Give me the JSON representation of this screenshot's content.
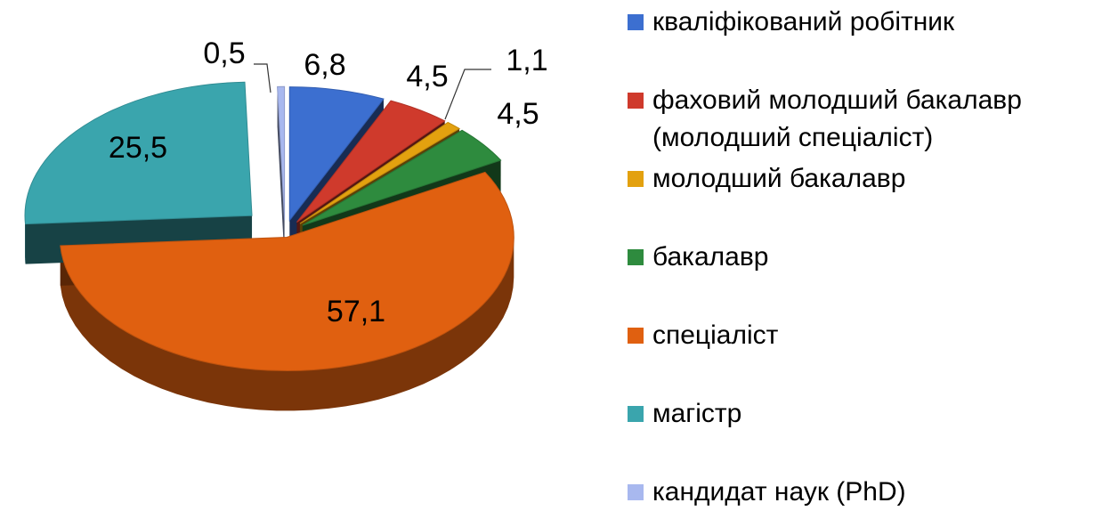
{
  "chart_data": {
    "type": "pie",
    "categories": [
      "кваліфікований робітник",
      "фаховий молодший бакалавр (молодший спеціаліст)",
      "молодший бакалавр",
      "бакалавр",
      "спеціаліст",
      "магістр",
      "кандидат наук (PhD)"
    ],
    "values": [
      6.8,
      4.5,
      1.1,
      4.5,
      57.1,
      25.5,
      0.5
    ],
    "value_labels": [
      "6,8",
      "4,5",
      "1,1",
      "4,5",
      "57,1",
      "25,5",
      "0,5"
    ],
    "colors": [
      "#3c6fd0",
      "#cf3a2c",
      "#e3a10f",
      "#2e8b3e",
      "#e06010",
      "#3aa5ad",
      "#a8b8ef"
    ],
    "legend": "right"
  }
}
